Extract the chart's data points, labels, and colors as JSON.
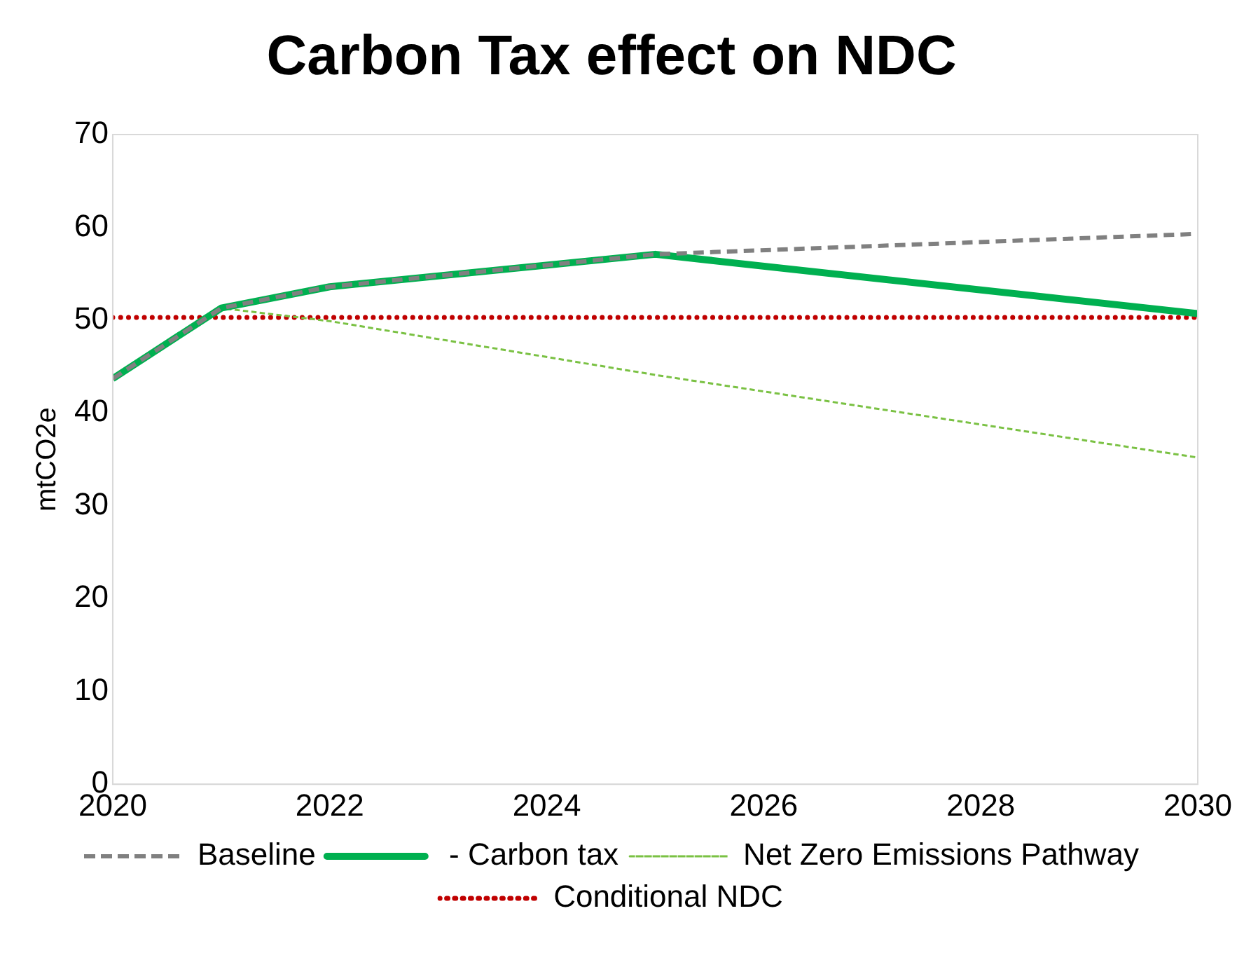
{
  "chart_data": {
    "type": "line",
    "title": "Carbon Tax effect on NDC",
    "ylabel": "mtCO2e",
    "x": [
      2020,
      2021,
      2022,
      2025,
      2030
    ],
    "xlim": [
      2020,
      2030
    ],
    "xticks": [
      2020,
      2022,
      2024,
      2026,
      2028,
      2030
    ],
    "ylim": [
      0,
      70
    ],
    "yticks": [
      0,
      10,
      20,
      30,
      40,
      50,
      60,
      70
    ],
    "grid": false,
    "legend": "bottom",
    "marker": "none",
    "series": [
      {
        "name": "Baseline",
        "color": "#808080",
        "line_style": "dashed",
        "values": [
          43.7,
          51.3,
          53.6,
          57.1,
          59.3
        ]
      },
      {
        "name": " - Carbon tax",
        "color": "#00b050",
        "line_style": "solid",
        "values": [
          43.7,
          51.3,
          53.6,
          57.1,
          50.7
        ]
      },
      {
        "name": "Net Zero Emissions Pathway",
        "color": "#7ac143",
        "line_style": "dashed",
        "values": [
          43.7,
          51.3,
          49.9,
          44.1,
          35.2
        ]
      },
      {
        "name": "Conditional NDC",
        "color": "#c00000",
        "line_style": "dotted",
        "values": [
          50.3,
          50.3,
          50.3,
          50.3,
          50.3
        ]
      }
    ]
  }
}
